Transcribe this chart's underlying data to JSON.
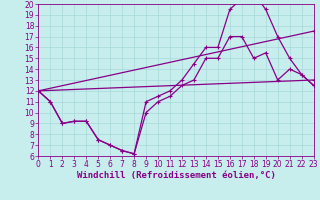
{
  "xlabel": "Windchill (Refroidissement éolien,°C)",
  "xlim": [
    0,
    23
  ],
  "ylim": [
    6,
    20
  ],
  "xticks": [
    0,
    1,
    2,
    3,
    4,
    5,
    6,
    7,
    8,
    9,
    10,
    11,
    12,
    13,
    14,
    15,
    16,
    17,
    18,
    19,
    20,
    21,
    22,
    23
  ],
  "yticks": [
    6,
    7,
    8,
    9,
    10,
    11,
    12,
    13,
    14,
    15,
    16,
    17,
    18,
    19,
    20
  ],
  "bg_color": "#c8eded",
  "grid_color": "#a8d8d8",
  "line_color": "#880088",
  "curve1_x": [
    0,
    1,
    2,
    3,
    4,
    5,
    6,
    7,
    8,
    9,
    10,
    11,
    12,
    13,
    14,
    15,
    16,
    17,
    18,
    19,
    20,
    21,
    22,
    23
  ],
  "curve1_y": [
    12.0,
    11.0,
    9.0,
    9.2,
    9.2,
    7.5,
    7.0,
    6.5,
    6.2,
    11.0,
    11.5,
    12.0,
    13.0,
    14.5,
    16.0,
    16.0,
    19.5,
    20.5,
    21.0,
    19.5,
    17.0,
    15.0,
    13.5,
    12.5
  ],
  "curve2_x": [
    0,
    1,
    2,
    3,
    4,
    5,
    6,
    7,
    8,
    9,
    10,
    11,
    12,
    13,
    14,
    15,
    16,
    17,
    18,
    19,
    20,
    21,
    22,
    23
  ],
  "curve2_y": [
    12.0,
    11.0,
    9.0,
    9.2,
    9.2,
    7.5,
    7.0,
    6.5,
    6.2,
    10.0,
    11.0,
    11.5,
    12.5,
    13.0,
    15.0,
    15.0,
    17.0,
    17.0,
    15.0,
    15.5,
    13.0,
    14.0,
    13.5,
    12.5
  ],
  "curve3_x": [
    0,
    23
  ],
  "curve3_y": [
    12.0,
    13.0
  ],
  "curve4_x": [
    0,
    23
  ],
  "curve4_y": [
    12.0,
    17.5
  ],
  "font_color": "#880088",
  "tick_fontsize": 5.5,
  "label_fontsize": 6.5,
  "line_width": 0.9,
  "marker_size": 3.0
}
